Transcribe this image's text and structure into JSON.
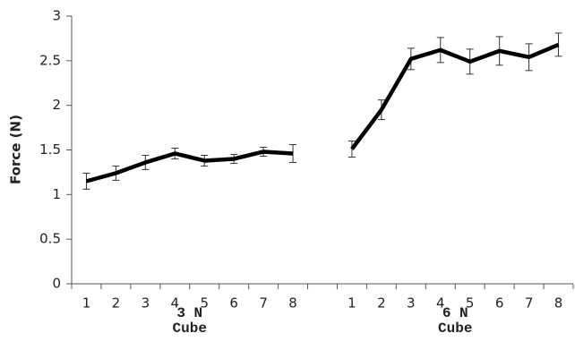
{
  "chart_data": {
    "type": "line",
    "y_label": "Force (N)",
    "categories": [
      "1",
      "2",
      "3",
      "4",
      "5",
      "6",
      "7",
      "8",
      null,
      "1",
      "2",
      "3",
      "4",
      "5",
      "6",
      "7",
      "8"
    ],
    "series": [
      {
        "color": "#000000",
        "values": [
          1.15,
          1.24,
          1.36,
          1.46,
          1.38,
          1.4,
          1.48,
          1.46,
          null,
          1.51,
          1.95,
          2.52,
          2.62,
          2.49,
          2.61,
          2.54,
          2.68
        ],
        "errors": [
          0.09,
          0.08,
          0.08,
          0.06,
          0.06,
          0.05,
          0.05,
          0.1,
          null,
          0.09,
          0.11,
          0.12,
          0.14,
          0.14,
          0.16,
          0.15,
          0.13
        ]
      }
    ],
    "group_labels": [
      [
        "3 N",
        "Cube"
      ],
      [
        "6 N",
        "Cube"
      ]
    ],
    "ylim": [
      0,
      3
    ],
    "yticks": [
      0,
      0.5,
      1,
      1.5,
      2,
      2.5,
      3
    ]
  }
}
